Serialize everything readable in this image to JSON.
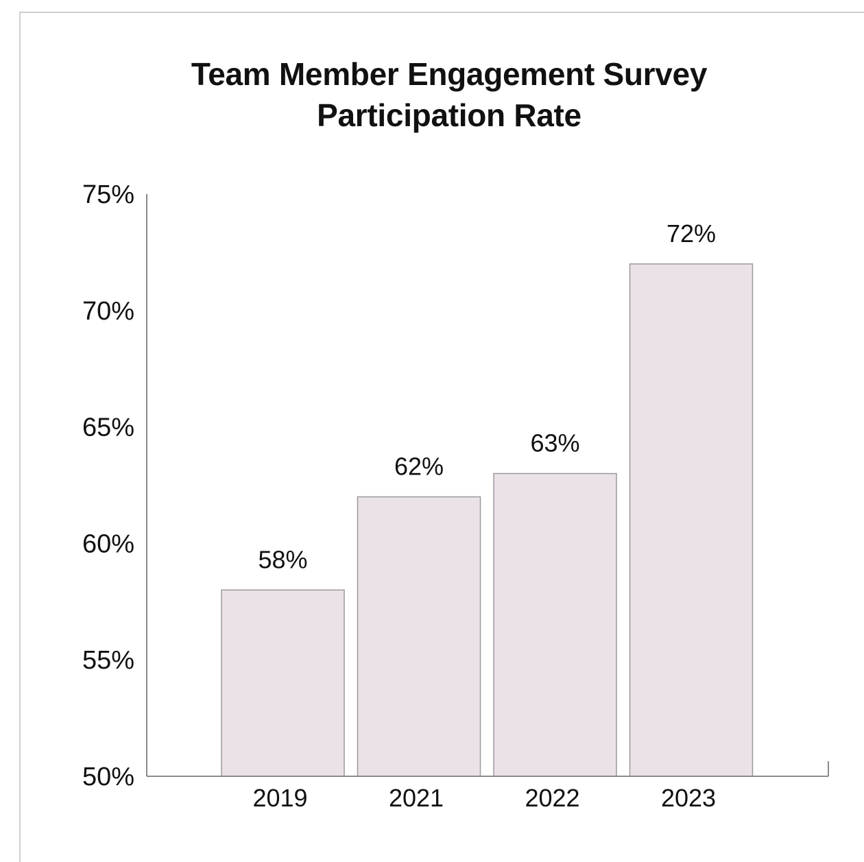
{
  "chart_data": {
    "type": "bar",
    "title": "Team Member Engagement Survey Participation Rate",
    "title_lines": [
      "Team Member Engagement Survey",
      "Participation Rate"
    ],
    "categories": [
      "2019",
      "2021",
      "2022",
      "2023"
    ],
    "values": [
      58,
      62,
      63,
      72
    ],
    "data_labels": [
      "58%",
      "62%",
      "63%",
      "72%"
    ],
    "ylim": [
      50,
      75
    ],
    "yticks": [
      50,
      55,
      60,
      65,
      70,
      75
    ],
    "ytick_labels": [
      "50%",
      "55%",
      "60%",
      "65%",
      "70%",
      "75%"
    ],
    "xlabel": "",
    "ylabel": "",
    "grid": false,
    "legend": "none",
    "bar_color": "#ebe1e9",
    "bar_edge_color": "#9a9a9a",
    "axis_color": "#8a8a8a"
  }
}
